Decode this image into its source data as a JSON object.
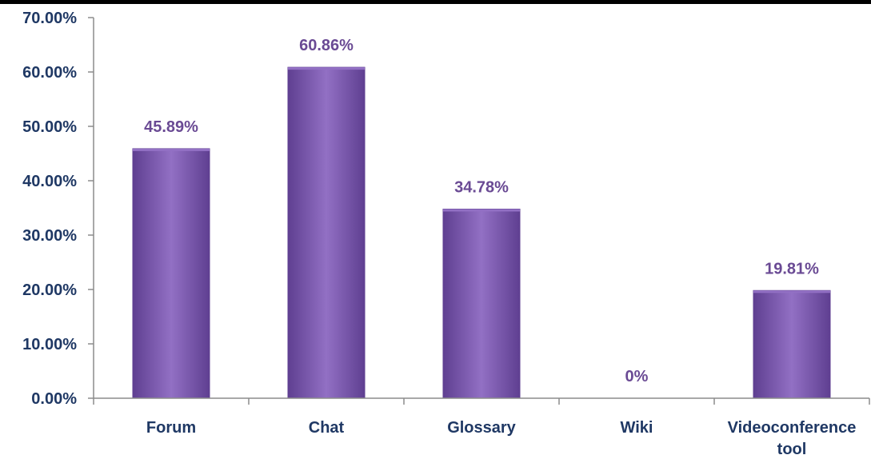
{
  "chart_data": {
    "type": "bar",
    "categories": [
      "Forum",
      "Chat",
      "Glossary",
      "Wiki",
      "Videoconference tool"
    ],
    "category_lines": [
      [
        "Forum"
      ],
      [
        "Chat"
      ],
      [
        "Glossary"
      ],
      [
        "Wiki"
      ],
      [
        "Videoconference",
        "tool"
      ]
    ],
    "values": [
      45.89,
      60.86,
      34.78,
      0,
      19.81
    ],
    "data_labels": [
      "45.89%",
      "60.86%",
      "34.78%",
      "0%",
      "19.81%"
    ],
    "ylim": [
      0,
      70
    ],
    "yticks": [
      0,
      10,
      20,
      30,
      40,
      50,
      60,
      70
    ],
    "ytick_labels": [
      "0.00%",
      "10.00%",
      "20.00%",
      "30.00%",
      "40.00%",
      "50.00%",
      "60.00%",
      "70.00%"
    ],
    "title": "",
    "xlabel": "",
    "ylabel": "",
    "grid": false,
    "legend": "none",
    "colors": {
      "bar": "#7d57b3",
      "bar_light": "#9270c4",
      "bar_dark": "#5f3f91",
      "data_label": "#6a4a94",
      "axis_text": "#1f3864",
      "axis_line": "#8c8c8c"
    }
  }
}
